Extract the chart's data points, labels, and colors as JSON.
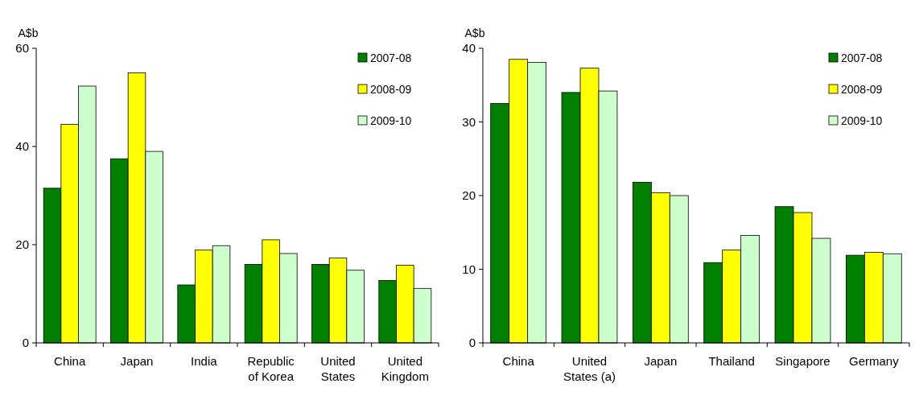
{
  "chart_data": [
    {
      "type": "bar",
      "ylabel": "A$b",
      "categories": [
        "China",
        "Japan",
        "India",
        "Republic of Korea",
        "United States",
        "United Kingdom"
      ],
      "series": [
        {
          "name": "2007-08",
          "color": "#008000",
          "values": [
            31.5,
            37.5,
            11.8,
            16,
            16,
            12.7
          ]
        },
        {
          "name": "2008-09",
          "color": "#ffff00",
          "values": [
            44.5,
            55,
            18.9,
            21,
            17.3,
            15.8
          ]
        },
        {
          "name": "2009-10",
          "color": "#ccffcc",
          "values": [
            52.3,
            39,
            19.8,
            18.2,
            14.8,
            11.1
          ]
        }
      ],
      "ylim": [
        0,
        60
      ],
      "yticks": [
        0,
        20,
        40,
        60
      ],
      "grid": false,
      "legend": "top right"
    },
    {
      "type": "bar",
      "ylabel": "A$b",
      "categories": [
        "China",
        "United States (a)",
        "Japan",
        "Thailand",
        "Singapore",
        "Germany"
      ],
      "series": [
        {
          "name": "2007-08",
          "color": "#008000",
          "values": [
            32.5,
            34,
            21.8,
            10.9,
            18.5,
            11.9
          ]
        },
        {
          "name": "2008-09",
          "color": "#ffff00",
          "values": [
            38.5,
            37.3,
            20.4,
            12.6,
            17.7,
            12.3
          ]
        },
        {
          "name": "2009-10",
          "color": "#ccffcc",
          "values": [
            38.1,
            34.2,
            20,
            14.6,
            14.2,
            12.1
          ]
        }
      ],
      "ylim": [
        0,
        40
      ],
      "yticks": [
        0,
        10,
        20,
        30,
        40
      ],
      "grid": false,
      "legend": "top right"
    }
  ]
}
